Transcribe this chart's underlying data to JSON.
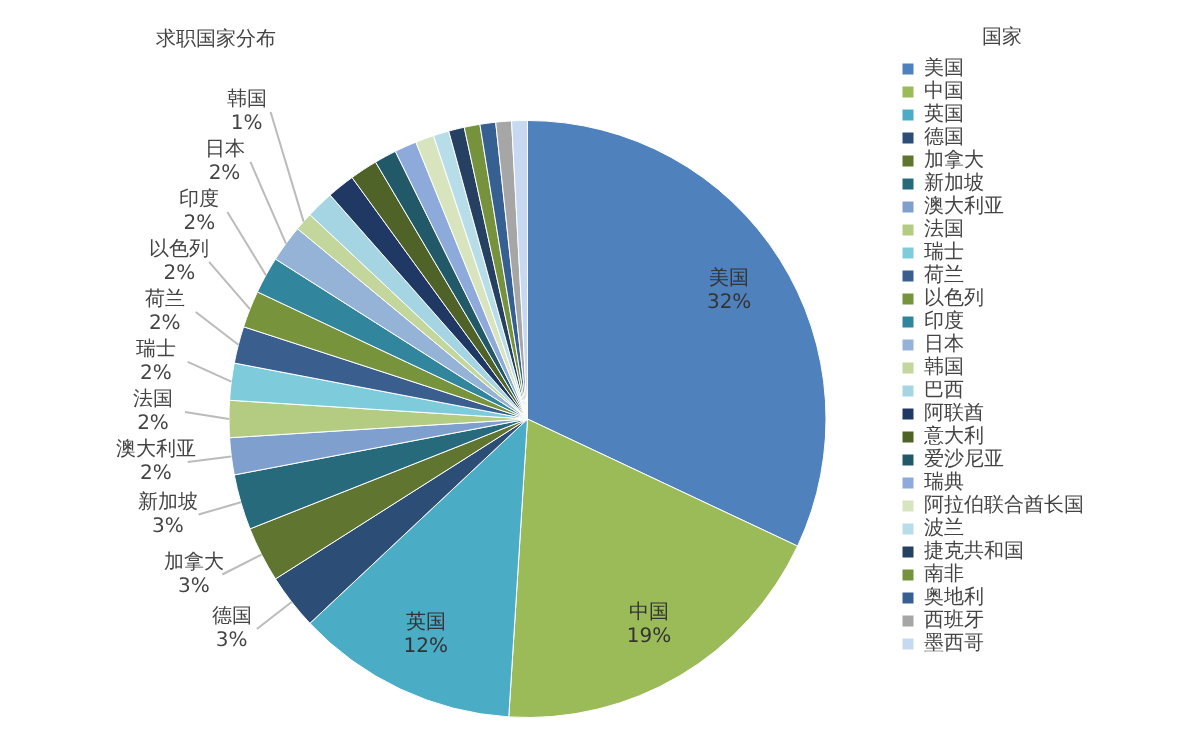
{
  "chart_data": {
    "type": "pie",
    "title": "求职国家分布",
    "legend_title": "国家",
    "legend": "right",
    "categories": [
      "美国",
      "中国",
      "英国",
      "德国",
      "加拿大",
      "新加坡",
      "澳大利亚",
      "法国",
      "瑞士",
      "荷兰",
      "以色列",
      "印度",
      "日本",
      "韩国",
      "巴西",
      "阿联酋",
      "意大利",
      "爱沙尼亚",
      "瑞典",
      "阿拉伯联合酋长国",
      "波兰",
      "捷克共和国",
      "南非",
      "奥地利",
      "西班牙",
      "墨西哥"
    ],
    "values": [
      32,
      19,
      12,
      3,
      3,
      3,
      2,
      2,
      2,
      2,
      2,
      2,
      2,
      1,
      1.5,
      1.5,
      1.5,
      1.2,
      1.2,
      1.0,
      0.85,
      0.85,
      0.85,
      0.85,
      0.85,
      0.85
    ],
    "value_labels": [
      "32%",
      "19%",
      "12%",
      "3%",
      "3%",
      "3%",
      "2%",
      "2%",
      "2%",
      "2%",
      "2%",
      "2%",
      "2%",
      "1%",
      null,
      null,
      null,
      null,
      null,
      null,
      null,
      null,
      null,
      null,
      null,
      null
    ],
    "colors": [
      "#4f81bd",
      "#9bbb59",
      "#4bacc6",
      "#2c4d75",
      "#5f7530",
      "#276a7c",
      "#7f9fcf",
      "#b3cc82",
      "#7ecbdc",
      "#3a5f8f",
      "#77933c",
      "#31859c",
      "#95b3d7",
      "#c3d69b",
      "#a5d5e2",
      "#1f3864",
      "#4f6228",
      "#215968",
      "#8eaadb",
      "#d7e4bd",
      "#b7dee8",
      "#254061",
      "#76923c",
      "#366092",
      "#a6a6a6",
      "#c6d9f1"
    ]
  }
}
